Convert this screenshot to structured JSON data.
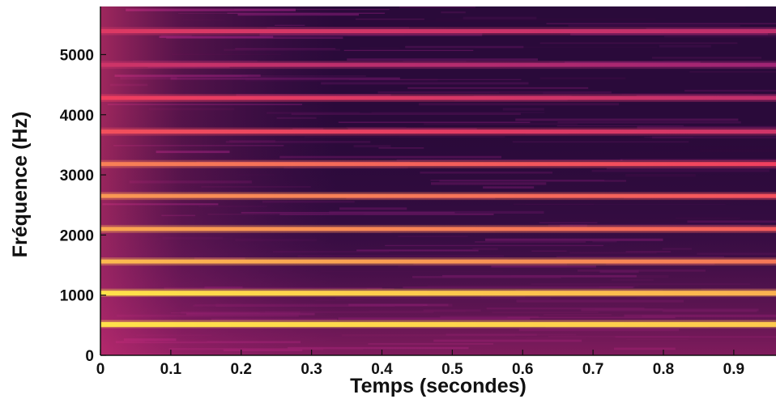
{
  "chart_data": {
    "type": "heatmap",
    "title": "",
    "xlabel": "Temps (secondes)",
    "ylabel": "Fréquence (Hz)",
    "xlim": [
      0,
      0.96
    ],
    "ylim": [
      0,
      5800
    ],
    "x_ticks": [
      0,
      0.1,
      0.2,
      0.3,
      0.4,
      0.5,
      0.6,
      0.7,
      0.8,
      0.9
    ],
    "x_tick_labels": [
      "0",
      "0.1",
      "0.2",
      "0.3",
      "0.4",
      "0.5",
      "0.6",
      "0.7",
      "0.8",
      "0.9"
    ],
    "y_ticks": [
      0,
      1000,
      2000,
      3000,
      4000,
      5000
    ],
    "y_tick_labels": [
      "0",
      "1000",
      "2000",
      "3000",
      "4000",
      "5000"
    ],
    "grid": false,
    "colormap": "magma",
    "colors": {
      "background": "#2a0a3a",
      "low": "#1e0630",
      "mid": "#8a1d7a",
      "high": "#f2405e",
      "peak": "#ffe24a"
    },
    "harmonics_hz": [
      520,
      1040,
      1560,
      2100,
      2650,
      3180,
      3720,
      4280,
      4830,
      5390
    ],
    "harmonic_intensity_start": [
      1.0,
      1.0,
      0.92,
      0.88,
      0.85,
      0.8,
      0.7,
      0.66,
      0.55,
      0.6
    ],
    "harmonic_intensity_end": [
      0.95,
      0.9,
      0.78,
      0.72,
      0.7,
      0.66,
      0.55,
      0.5,
      0.4,
      0.5
    ]
  }
}
